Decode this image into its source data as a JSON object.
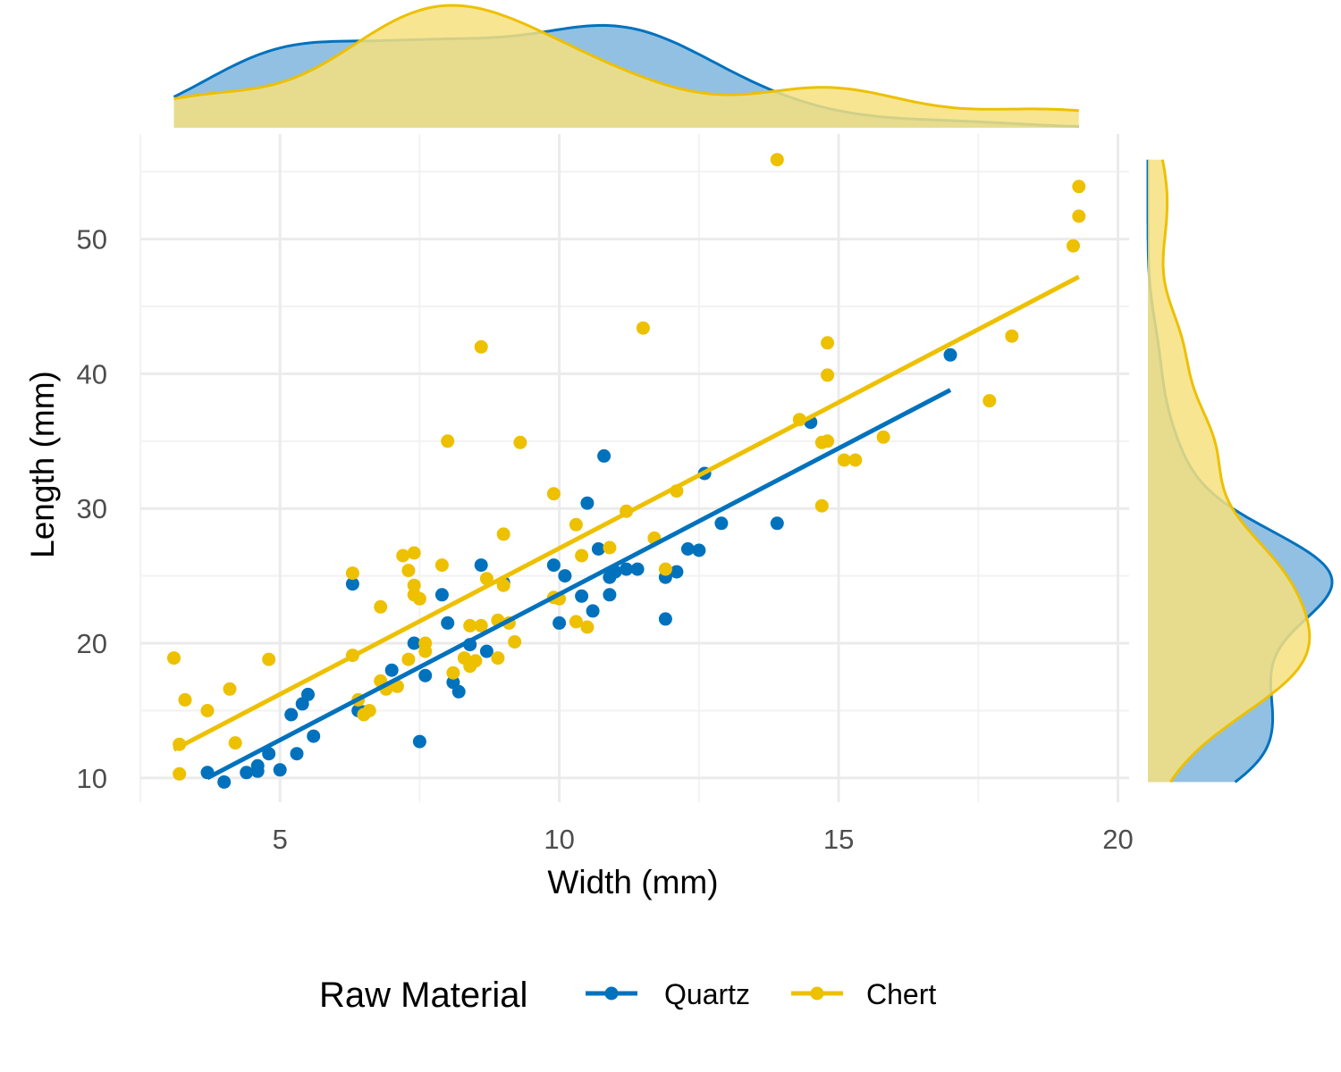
{
  "chart_data": {
    "type": "scatter",
    "title": "",
    "xlabel": "Width (mm)",
    "ylabel": "Length (mm)",
    "xlim": [
      2.5,
      20.2
    ],
    "ylim": [
      8.2,
      57.8
    ],
    "x_ticks": [
      "5",
      "10",
      "15",
      "20"
    ],
    "y_ticks": [
      "10",
      "20",
      "30",
      "40",
      "50"
    ],
    "grid": true,
    "legend": {
      "title": "Raw Material",
      "position": "bottom"
    },
    "marginal_density": {
      "top": "x",
      "right": "y"
    },
    "series": [
      {
        "name": "Quartz",
        "color": "#0072BD",
        "fill": "#7FB5DD",
        "trend": {
          "x": [
            3.7,
            17.0
          ],
          "y": [
            10.0,
            38.8
          ]
        },
        "points": [
          [
            3.7,
            10.4
          ],
          [
            4.0,
            9.7
          ],
          [
            4.4,
            10.4
          ],
          [
            4.6,
            10.9
          ],
          [
            4.6,
            10.5
          ],
          [
            4.8,
            11.8
          ],
          [
            5.0,
            10.6
          ],
          [
            5.2,
            14.7
          ],
          [
            5.3,
            11.8
          ],
          [
            5.4,
            15.5
          ],
          [
            5.5,
            16.2
          ],
          [
            5.6,
            13.1
          ],
          [
            6.3,
            24.4
          ],
          [
            6.4,
            15.0
          ],
          [
            6.5,
            14.9
          ],
          [
            7.0,
            18.0
          ],
          [
            7.4,
            20.0
          ],
          [
            7.5,
            12.7
          ],
          [
            7.6,
            17.6
          ],
          [
            7.9,
            23.6
          ],
          [
            8.0,
            21.5
          ],
          [
            8.1,
            17.1
          ],
          [
            8.2,
            16.4
          ],
          [
            8.4,
            19.9
          ],
          [
            8.6,
            25.8
          ],
          [
            8.7,
            19.4
          ],
          [
            9.0,
            24.5
          ],
          [
            9.9,
            25.8
          ],
          [
            10.1,
            25.0
          ],
          [
            10.0,
            21.5
          ],
          [
            10.4,
            23.5
          ],
          [
            10.5,
            30.4
          ],
          [
            10.6,
            22.4
          ],
          [
            10.7,
            27.0
          ],
          [
            10.8,
            33.9
          ],
          [
            10.9,
            24.9
          ],
          [
            10.9,
            23.6
          ],
          [
            11.0,
            25.3
          ],
          [
            11.2,
            25.5
          ],
          [
            11.4,
            25.5
          ],
          [
            11.9,
            24.9
          ],
          [
            11.9,
            21.8
          ],
          [
            12.1,
            25.3
          ],
          [
            12.3,
            27.0
          ],
          [
            12.5,
            26.9
          ],
          [
            12.6,
            32.6
          ],
          [
            12.9,
            28.9
          ],
          [
            13.9,
            28.9
          ],
          [
            14.5,
            36.4
          ],
          [
            17.0,
            41.4
          ]
        ]
      },
      {
        "name": "Chert",
        "color": "#EDC000",
        "fill": "#F6E07F",
        "trend": {
          "x": [
            3.1,
            19.3
          ],
          "y": [
            12.1,
            47.2
          ]
        },
        "points": [
          [
            3.1,
            18.9
          ],
          [
            3.2,
            12.5
          ],
          [
            3.2,
            10.3
          ],
          [
            3.3,
            15.8
          ],
          [
            3.7,
            15.0
          ],
          [
            4.1,
            16.6
          ],
          [
            4.2,
            12.6
          ],
          [
            4.8,
            18.8
          ],
          [
            6.3,
            25.2
          ],
          [
            6.3,
            19.1
          ],
          [
            6.4,
            15.8
          ],
          [
            6.5,
            14.7
          ],
          [
            6.6,
            15.0
          ],
          [
            6.8,
            22.7
          ],
          [
            6.8,
            17.2
          ],
          [
            6.9,
            16.6
          ],
          [
            7.1,
            16.8
          ],
          [
            7.2,
            26.5
          ],
          [
            7.3,
            25.4
          ],
          [
            7.3,
            18.8
          ],
          [
            7.4,
            26.7
          ],
          [
            7.4,
            24.3
          ],
          [
            7.4,
            23.6
          ],
          [
            7.5,
            23.3
          ],
          [
            7.6,
            20.0
          ],
          [
            7.6,
            19.4
          ],
          [
            7.9,
            25.8
          ],
          [
            8.0,
            35.0
          ],
          [
            8.1,
            17.8
          ],
          [
            8.3,
            18.9
          ],
          [
            8.4,
            21.3
          ],
          [
            8.4,
            18.3
          ],
          [
            8.5,
            18.7
          ],
          [
            8.6,
            42.0
          ],
          [
            8.7,
            24.8
          ],
          [
            8.6,
            21.3
          ],
          [
            8.9,
            21.7
          ],
          [
            8.9,
            18.9
          ],
          [
            9.0,
            28.1
          ],
          [
            9.0,
            24.3
          ],
          [
            9.1,
            21.5
          ],
          [
            9.2,
            20.1
          ],
          [
            9.3,
            34.9
          ],
          [
            9.9,
            31.1
          ],
          [
            9.9,
            23.4
          ],
          [
            10.0,
            23.3
          ],
          [
            10.3,
            28.8
          ],
          [
            10.3,
            21.6
          ],
          [
            10.4,
            26.5
          ],
          [
            10.5,
            21.2
          ],
          [
            10.9,
            27.1
          ],
          [
            11.2,
            29.8
          ],
          [
            11.5,
            43.4
          ],
          [
            11.7,
            27.8
          ],
          [
            11.9,
            25.5
          ],
          [
            12.1,
            31.3
          ],
          [
            13.9,
            55.9
          ],
          [
            14.3,
            36.6
          ],
          [
            14.7,
            34.9
          ],
          [
            14.8,
            35.0
          ],
          [
            14.7,
            30.2
          ],
          [
            14.8,
            42.3
          ],
          [
            14.8,
            39.9
          ],
          [
            15.1,
            33.6
          ],
          [
            15.3,
            33.6
          ],
          [
            15.8,
            35.3
          ],
          [
            17.7,
            38.0
          ],
          [
            18.1,
            42.8
          ],
          [
            19.2,
            49.5
          ],
          [
            19.3,
            51.7
          ],
          [
            19.3,
            53.9
          ]
        ]
      }
    ]
  }
}
